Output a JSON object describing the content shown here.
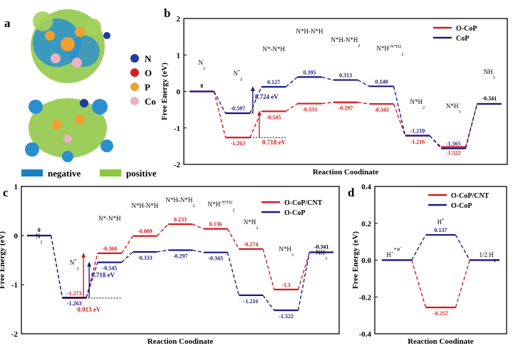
{
  "panel_labels": {
    "a": "a",
    "b": "b",
    "c": "c",
    "d": "d"
  },
  "panel_a": {
    "legend_atoms": [
      {
        "label": "N",
        "color": "#1f3c9c"
      },
      {
        "label": "O",
        "color": "#d42020"
      },
      {
        "label": "P",
        "color": "#f0a030"
      },
      {
        "label": "Co",
        "color": "#eab2c4"
      }
    ],
    "charge_legend": [
      {
        "label": "negative",
        "color": "#1b7fc1"
      },
      {
        "label": "positive",
        "color": "#8cc63f"
      }
    ]
  },
  "chart_data": [
    {
      "id": "b",
      "type": "line",
      "title": "",
      "xlabel": "Reaction Coodinate",
      "ylabel": "Free Energy (eV)",
      "ylim": [
        -2,
        2
      ],
      "yticks": [
        "2",
        "1",
        "0",
        "-1",
        "-2"
      ],
      "steps": [
        "N2",
        "N2*",
        "N*-N*H",
        "N*H-N*H",
        "N*H-N*H2",
        "N*H2-N*H2",
        "N*H2",
        "N*H3",
        "NH3"
      ],
      "step_labels": [
        {
          "base": "N",
          "sub": "2",
          "sup": ""
        },
        {
          "base": "N",
          "sub": "2",
          "sup": "*"
        },
        {
          "base": "N*-N*H",
          "sub": "",
          "sup": ""
        },
        {
          "base": "N*H-N*H",
          "sub": "",
          "sup": ""
        },
        {
          "base": "N*H-N*H",
          "sub": "2",
          "sup": ""
        },
        {
          "base": "N*H",
          "sub": "2",
          "sup": "-N*H2"
        },
        {
          "base": "N*H",
          "sub": "2",
          "sup": ""
        },
        {
          "base": "N*H",
          "sub": "3",
          "sup": ""
        },
        {
          "base": "NH",
          "sub": "3",
          "sup": ""
        }
      ],
      "series": [
        {
          "name": "O-CoP",
          "color": "#d7191c",
          "values": [
            0,
            -1.263,
            -0.545,
            -0.333,
            -0.297,
            -0.343,
            -1.216,
            -1.522,
            -0.341
          ],
          "labels": [
            "0",
            "-1.263",
            "-0.545",
            "-0.333",
            "-0.297",
            "-0.343",
            "-1.216",
            "-1.522",
            "-0.341"
          ]
        },
        {
          "name": "CoP",
          "color": "#1a1a8c",
          "values": [
            0,
            -0.597,
            0.127,
            0.395,
            0.313,
            0.14,
            -1.21,
            -1.565,
            -0.341
          ],
          "labels": [
            "0",
            "-0.597",
            "0.127",
            "0.395",
            "0.313",
            "0.140",
            "-1.210",
            "-1.565",
            "-0.341"
          ]
        }
      ],
      "annotations": [
        {
          "text": "0.724 eV",
          "color": "#1a1a8c"
        },
        {
          "text": "0.718 eV",
          "color": "#d7191c"
        }
      ]
    },
    {
      "id": "c",
      "type": "line",
      "title": "",
      "xlabel": "Reaction Coodinate",
      "ylabel": "Free Energy (eV)",
      "ylim": [
        -2,
        1
      ],
      "yticks": [
        "1",
        "0",
        "-1",
        "-2"
      ],
      "steps": [
        "N2",
        "N2*",
        "N*-N*H",
        "N*H-N*H",
        "N*H-N*H2",
        "N*H2-N*H2",
        "N*H2",
        "N*H3",
        "NH3"
      ],
      "step_labels": [
        {
          "base": "N",
          "sub": "2",
          "sup": ""
        },
        {
          "base": "N",
          "sub": "2",
          "sup": "*"
        },
        {
          "base": "N*-N*H",
          "sub": "",
          "sup": ""
        },
        {
          "base": "N*H-N*H",
          "sub": "",
          "sup": ""
        },
        {
          "base": "N*H-N*H",
          "sub": "2",
          "sup": ""
        },
        {
          "base": "N*H",
          "sub": "2",
          "sup": "-N*H2"
        },
        {
          "base": "N*H",
          "sub": "2",
          "sup": ""
        },
        {
          "base": "N*H",
          "sub": "3",
          "sup": ""
        },
        {
          "base": "NH",
          "sub": "3",
          "sup": ""
        }
      ],
      "series": [
        {
          "name": "O-CoP/CNT",
          "color": "#d7191c",
          "values": [
            0,
            -1.273,
            -0.36,
            -0.009,
            0.233,
            0.136,
            -0.274,
            -1.1,
            -0.341
          ],
          "labels": [
            "0",
            "-1.273",
            "-0.360",
            "-0.009",
            "0.233",
            "0.136",
            "-0.274",
            "-1.1",
            "-0.341"
          ]
        },
        {
          "name": "O-CoP",
          "color": "#1a1a8c",
          "values": [
            0,
            -1.263,
            -0.545,
            -0.333,
            -0.297,
            -0.343,
            -1.216,
            -1.522,
            -0.341
          ],
          "labels": [
            "0",
            "-1.263",
            "-0.545",
            "-0.333",
            "-0.297",
            "-0.343",
            "-1.216",
            "-1.522",
            "-0.341"
          ]
        }
      ],
      "annotations": [
        {
          "text": "0.718 eV",
          "color": "#1a1a8c"
        },
        {
          "text": "0.913 eV",
          "color": "#d7191c"
        }
      ]
    },
    {
      "id": "d",
      "type": "line",
      "title": "",
      "xlabel": "Reaction Coodinate",
      "ylabel": "Free Energy (eV)",
      "ylim": [
        -0.4,
        0.4
      ],
      "yticks": [
        "0.4",
        "0.2",
        "0.0",
        "-0.2",
        "-0.4"
      ],
      "steps": [
        "H++e-",
        "H*",
        "1/2 H2"
      ],
      "step_labels": [
        {
          "base": "H",
          "sub": "",
          "sup": "+",
          "extra": "+e",
          "extra_sup": "-"
        },
        {
          "base": "H",
          "sub": "",
          "sup": "*"
        },
        {
          "base": "1/2 H",
          "sub": "2",
          "sup": ""
        }
      ],
      "series": [
        {
          "name": "O-CoP/CNT",
          "color": "#d7191c",
          "values": [
            0,
            -0.257,
            0
          ],
          "labels": [
            "",
            "-0.257",
            ""
          ]
        },
        {
          "name": "O-CoP",
          "color": "#1a1a8c",
          "values": [
            0,
            0.137,
            0
          ],
          "labels": [
            "",
            "0.137",
            ""
          ]
        }
      ]
    }
  ]
}
